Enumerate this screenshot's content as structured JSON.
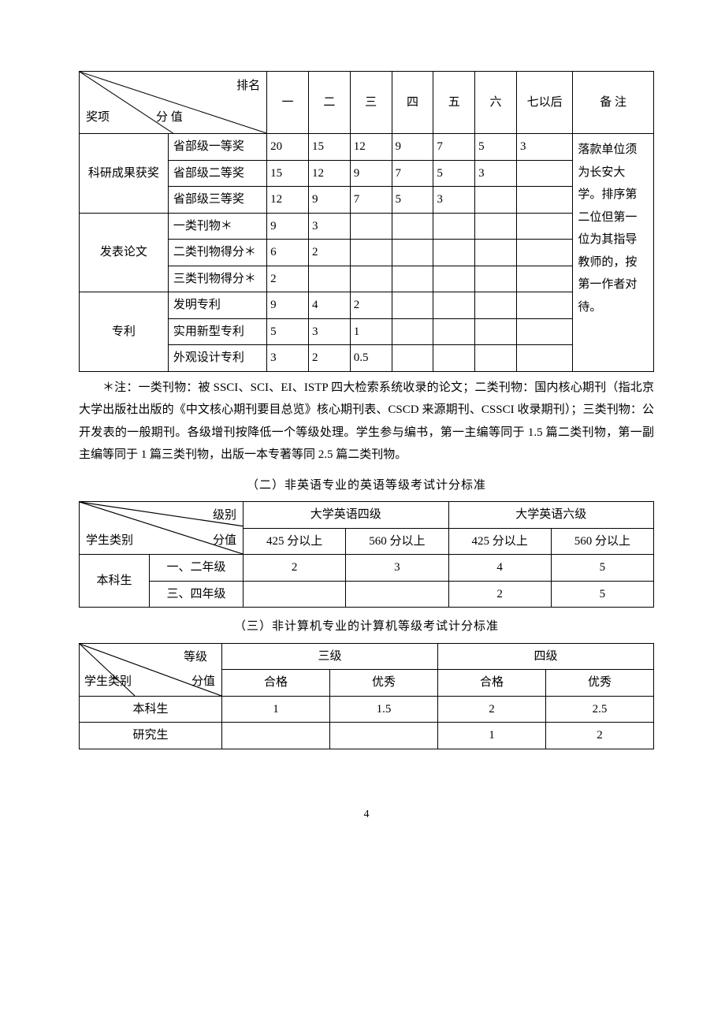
{
  "table1": {
    "diag": {
      "top": "排名",
      "mid": "分 值",
      "bot": "奖项"
    },
    "head": [
      "一",
      "二",
      "三",
      "四",
      "五",
      "六",
      "七以后",
      "备  注"
    ],
    "groups": [
      {
        "label": "科研成果获奖",
        "rows": [
          {
            "k": "省部级一等奖",
            "v": [
              "20",
              "15",
              "12",
              "9",
              "7",
              "5",
              "3"
            ]
          },
          {
            "k": "省部级二等奖",
            "v": [
              "15",
              "12",
              "9",
              "7",
              "5",
              "3",
              ""
            ]
          },
          {
            "k": "省部级三等奖",
            "v": [
              "12",
              "9",
              "7",
              "5",
              "3",
              "",
              ""
            ]
          }
        ]
      },
      {
        "label": "发表论文",
        "rows": [
          {
            "k": "一类刊物＊",
            "v": [
              "9",
              "3",
              "",
              "",
              "",
              "",
              ""
            ]
          },
          {
            "k": "二类刊物得分＊",
            "v": [
              "6",
              "2",
              "",
              "",
              "",
              "",
              ""
            ]
          },
          {
            "k": "三类刊物得分＊",
            "v": [
              "2",
              "",
              "",
              "",
              "",
              "",
              ""
            ]
          }
        ]
      },
      {
        "label": "专利",
        "rows": [
          {
            "k": "发明专利",
            "v": [
              "9",
              "4",
              "2",
              "",
              "",
              "",
              ""
            ]
          },
          {
            "k": "实用新型专利",
            "v": [
              "5",
              "3",
              "1",
              "",
              "",
              "",
              ""
            ]
          },
          {
            "k": "外观设计专利",
            "v": [
              "3",
              "2",
              "0.5",
              "",
              "",
              "",
              ""
            ]
          }
        ]
      }
    ],
    "remark": "落款单位须为长安大学。排序第二位但第一位为其指导教师的，按第一作者对待。"
  },
  "note": "＊注：一类刊物：被 SSCI、SCI、EI、ISTP 四大检索系统收录的论文；二类刊物：国内核心期刊（指北京大学出版社出版的《中文核心期刊要目总览》核心期刊表、CSCD 来源期刊、CSSCI 收录期刊）；三类刊物：公开发表的一般期刊。各级增刊按降低一个等级处理。学生参与编书，第一主编等同于 1.5 篇二类刊物，第一副主编等同于 1 篇三类刊物，出版一本专著等同 2.5 篇二类刊物。",
  "section2_title": "（二）非英语专业的英语等级考试计分标准",
  "table2": {
    "diag": {
      "top": "级别",
      "mid": "分值",
      "bot": "学生类别"
    },
    "majors": [
      "大学英语四级",
      "大学英语六级"
    ],
    "subs": [
      "425 分以上",
      "560 分以上",
      "425 分以上",
      "560 分以上"
    ],
    "group_label": "本科生",
    "rows": [
      {
        "k": "一、二年级",
        "v": [
          "2",
          "3",
          "4",
          "5"
        ]
      },
      {
        "k": "三、四年级",
        "v": [
          "",
          "",
          "2",
          "5"
        ]
      }
    ]
  },
  "section3_title": "（三）非计算机专业的计算机等级考试计分标准",
  "table3": {
    "diag": {
      "top": "等级",
      "mid": "分值",
      "bot": "学生类别"
    },
    "majors": [
      "三级",
      "四级"
    ],
    "subs": [
      "合格",
      "优秀",
      "合格",
      "优秀"
    ],
    "rows": [
      {
        "k": "本科生",
        "v": [
          "1",
          "1.5",
          "2",
          "2.5"
        ]
      },
      {
        "k": "研究生",
        "v": [
          "",
          "",
          "1",
          "2"
        ]
      }
    ]
  },
  "page": "4"
}
